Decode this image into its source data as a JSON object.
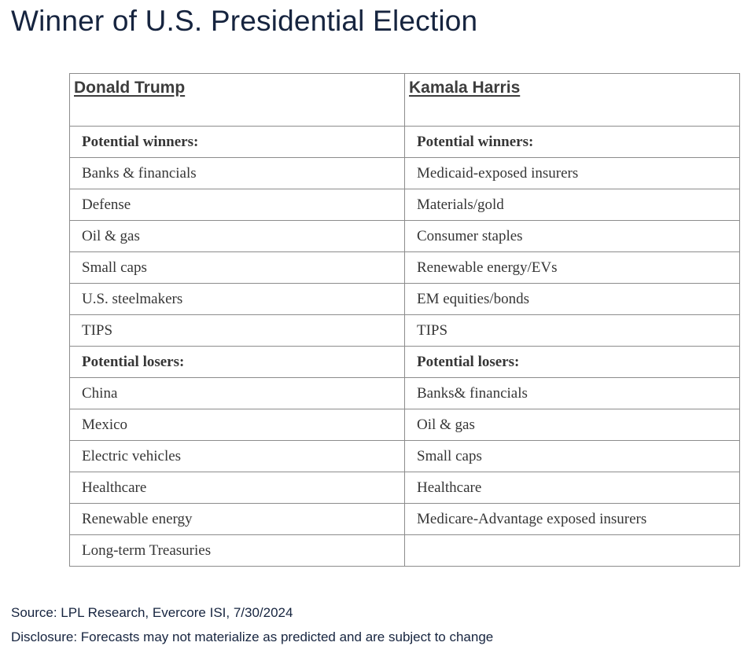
{
  "chart_data": {
    "type": "table",
    "title": "Winner of U.S. Presidential Election",
    "columns": [
      {
        "header": "Donald Trump",
        "sections": [
          {
            "label": "Potential winners:",
            "items": [
              "Banks & financials",
              "Defense",
              "Oil & gas",
              "Small caps",
              "U.S. steelmakers",
              "TIPS"
            ]
          },
          {
            "label": "Potential losers:",
            "items": [
              "China",
              "Mexico",
              "Electric vehicles",
              "Healthcare",
              "Renewable energy",
              "Long-term Treasuries"
            ]
          }
        ]
      },
      {
        "header": "Kamala Harris",
        "sections": [
          {
            "label": "Potential winners:",
            "items": [
              "Medicaid-exposed insurers",
              "Materials/gold",
              "Consumer staples",
              "Renewable energy/EVs",
              "EM equities/bonds",
              "TIPS"
            ]
          },
          {
            "label": "Potential losers:",
            "items": [
              "Banks& financials",
              "Oil & gas",
              "Small caps",
              "Healthcare",
              "Medicare-Advantage exposed insurers"
            ]
          }
        ]
      }
    ],
    "source": "Source: LPL Research, Evercore ISI, 7/30/2024",
    "disclosure": "Disclosure: Forecasts may not materialize as predicted and are subject to change"
  },
  "colors": {
    "title_navy": "#16243f",
    "header_text": "#3d3d3d",
    "body_text": "#363636",
    "border_gray": "#8c8c8c",
    "background": "#ffffff"
  }
}
